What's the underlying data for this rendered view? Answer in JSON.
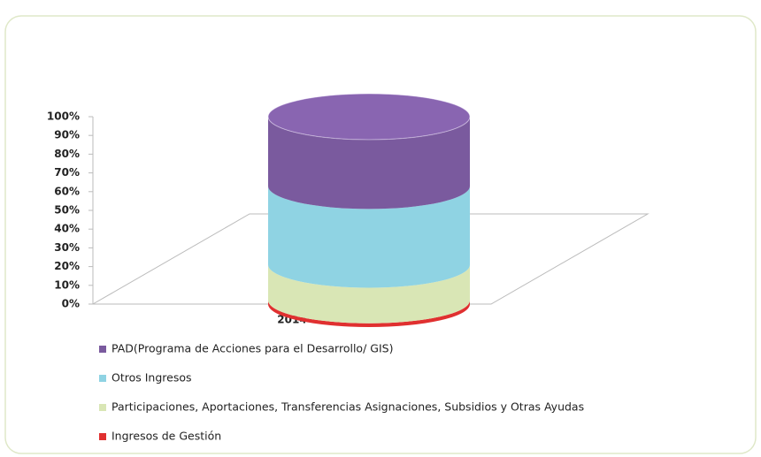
{
  "chart_data": {
    "type": "bar",
    "stacked": true,
    "categories": [
      "2014"
    ],
    "series": [
      {
        "name": "Ingresos de Gestión",
        "color": "#e03030",
        "values": [
          2
        ]
      },
      {
        "name": "Participaciones, Aportaciones, Transferencias Asignaciones, Subsidios y Otras Ayudas",
        "color": "#d9e6b5",
        "values": [
          19
        ]
      },
      {
        "name": "Otros Ingresos",
        "color": "#8fd3e3",
        "values": [
          42
        ]
      },
      {
        "name": "PAD(Programa de Acciones para el Desarrollo/ GIS)",
        "color": "#7a5a9e",
        "values": [
          37
        ]
      }
    ],
    "ylim": [
      0,
      100
    ],
    "yticks": [
      {
        "value": 0,
        "label": "0%"
      },
      {
        "value": 10,
        "label": "10%"
      },
      {
        "value": 20,
        "label": "20%"
      },
      {
        "value": 30,
        "label": "30%"
      },
      {
        "value": 40,
        "label": "40%"
      },
      {
        "value": 50,
        "label": "50%"
      },
      {
        "value": 60,
        "label": "60%"
      },
      {
        "value": 70,
        "label": "70%"
      },
      {
        "value": 80,
        "label": "80%"
      },
      {
        "value": 90,
        "label": "90%"
      },
      {
        "value": 100,
        "label": "100%"
      }
    ]
  }
}
